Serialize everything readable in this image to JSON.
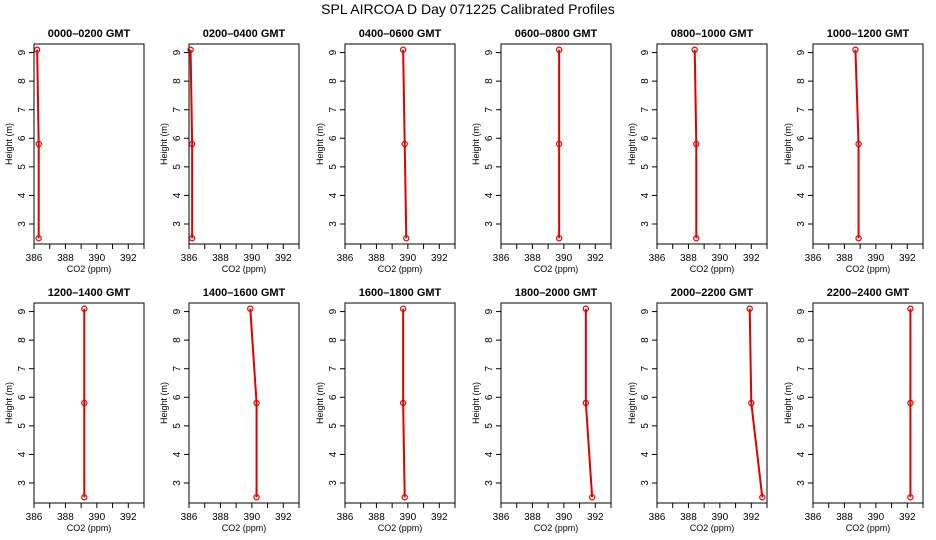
{
  "suptitle": "SPL AIRCOA D  Day 071225  Calibrated Profiles",
  "chart_data": {
    "type": "line",
    "grid": false,
    "xlabel": "CO2 (ppm)",
    "ylabel": "Height (m)",
    "xlim": [
      386,
      393
    ],
    "ylim": [
      2.3,
      9.3
    ],
    "xticks": [
      386,
      388,
      390,
      392
    ],
    "yticks": [
      3,
      4,
      5,
      6,
      7,
      8,
      9
    ],
    "heights": [
      9.1,
      5.8,
      2.5
    ],
    "color": "#e00000",
    "panels": [
      {
        "title": "0000–0200 GMT",
        "values": [
          386.2,
          386.3,
          386.3
        ]
      },
      {
        "title": "0200–0400 GMT",
        "values": [
          386.1,
          386.2,
          386.2
        ]
      },
      {
        "title": "0400–0600 GMT",
        "values": [
          389.7,
          389.8,
          389.9
        ]
      },
      {
        "title": "0600–0800 GMT",
        "values": [
          389.7,
          389.7,
          389.7
        ]
      },
      {
        "title": "0800–1000 GMT",
        "values": [
          388.4,
          388.5,
          388.5
        ]
      },
      {
        "title": "1000–1200 GMT",
        "values": [
          388.7,
          388.9,
          388.9
        ]
      },
      {
        "title": "1200–1400 GMT",
        "values": [
          389.2,
          389.2,
          389.2
        ]
      },
      {
        "title": "1400–1600 GMT",
        "values": [
          389.9,
          390.3,
          390.3
        ]
      },
      {
        "title": "1600–1800 GMT",
        "values": [
          389.7,
          389.7,
          389.8
        ]
      },
      {
        "title": "1800–2000 GMT",
        "values": [
          391.4,
          391.4,
          391.8
        ]
      },
      {
        "title": "2000–2200 GMT",
        "values": [
          391.9,
          392.0,
          392.7
        ]
      },
      {
        "title": "2200–2400 GMT",
        "values": [
          392.2,
          392.2,
          392.2
        ]
      }
    ]
  }
}
